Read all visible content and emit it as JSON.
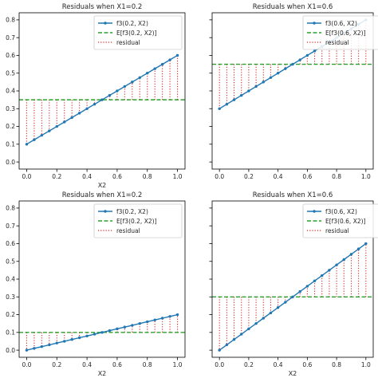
{
  "chart_data": [
    {
      "type": "line",
      "title": "Residuals when X1=0.2",
      "xlabel": "X2",
      "ylabel": "",
      "xlim": [
        -0.05,
        1.05
      ],
      "ylim": [
        -0.04,
        0.84
      ],
      "xticks": [
        "0.0",
        "0.2",
        "0.4",
        "0.6",
        "0.8",
        "1.0"
      ],
      "yticks": [
        "0.0",
        "0.1",
        "0.2",
        "0.3",
        "0.4",
        "0.5",
        "0.6",
        "0.7",
        "0.8"
      ],
      "legend_position": "top-right",
      "x": [
        0.0,
        0.05,
        0.1,
        0.15,
        0.2,
        0.25,
        0.3,
        0.35,
        0.4,
        0.45,
        0.5,
        0.55,
        0.6,
        0.65,
        0.7,
        0.75,
        0.8,
        0.85,
        0.9,
        0.95,
        1.0
      ],
      "series": [
        {
          "name": "f3(0.2, X2)",
          "style": "line-marker",
          "color": "#1f77b4",
          "values": [
            0.1,
            0.125,
            0.15,
            0.175,
            0.2,
            0.225,
            0.25,
            0.275,
            0.3,
            0.325,
            0.35,
            0.375,
            0.4,
            0.425,
            0.45,
            0.475,
            0.5,
            0.525,
            0.55,
            0.575,
            0.6
          ]
        },
        {
          "name": "E[f3(0.2, X2)]",
          "style": "dashed",
          "color": "#2ca02c",
          "value": 0.35
        },
        {
          "name": "residual",
          "style": "dotted-vlines",
          "color": "#d62728"
        }
      ]
    },
    {
      "type": "line",
      "title": "Residuals when X1=0.6",
      "xlabel": "",
      "ylabel": "",
      "xlim": [
        -0.05,
        1.05
      ],
      "ylim": [
        -0.04,
        0.84
      ],
      "xticks": [
        "0.0",
        "0.2",
        "0.4",
        "0.6",
        "0.8",
        "1.0"
      ],
      "yticks": [],
      "legend_position": "top-left",
      "x": [
        0.0,
        0.05,
        0.1,
        0.15,
        0.2,
        0.25,
        0.3,
        0.35,
        0.4,
        0.45,
        0.5,
        0.55,
        0.6,
        0.65,
        0.7,
        0.75,
        0.8,
        0.85,
        0.9,
        0.95,
        1.0
      ],
      "series": [
        {
          "name": "f3(0.6, X2)",
          "style": "line-marker",
          "color": "#1f77b4",
          "values": [
            0.3,
            0.325,
            0.35,
            0.375,
            0.4,
            0.425,
            0.45,
            0.475,
            0.5,
            0.525,
            0.55,
            0.575,
            0.6,
            0.625,
            0.65,
            0.675,
            0.7,
            0.725,
            0.75,
            0.775,
            0.8
          ]
        },
        {
          "name": "E[f3(0.6, X2)]",
          "style": "dashed",
          "color": "#2ca02c",
          "value": 0.55
        },
        {
          "name": "residual",
          "style": "dotted-vlines",
          "color": "#d62728"
        }
      ]
    },
    {
      "type": "line",
      "title": "Residuals when X1=0.2",
      "xlabel": "X2",
      "ylabel": "",
      "xlim": [
        -0.05,
        1.05
      ],
      "ylim": [
        -0.04,
        0.84
      ],
      "xticks": [
        "0.0",
        "0.2",
        "0.4",
        "0.6",
        "0.8",
        "1.0"
      ],
      "yticks": [
        "0.0",
        "0.1",
        "0.2",
        "0.3",
        "0.4",
        "0.5",
        "0.6",
        "0.7",
        "0.8"
      ],
      "legend_position": "top-right",
      "x": [
        0.0,
        0.05,
        0.1,
        0.15,
        0.2,
        0.25,
        0.3,
        0.35,
        0.4,
        0.45,
        0.5,
        0.55,
        0.6,
        0.65,
        0.7,
        0.75,
        0.8,
        0.85,
        0.9,
        0.95,
        1.0
      ],
      "series": [
        {
          "name": "f3(0.2, X2)",
          "style": "line-marker",
          "color": "#1f77b4",
          "values": [
            0.0,
            0.01,
            0.02,
            0.03,
            0.04,
            0.05,
            0.06,
            0.07,
            0.08,
            0.09,
            0.1,
            0.11,
            0.12,
            0.13,
            0.14,
            0.15,
            0.16,
            0.17,
            0.18,
            0.19,
            0.2
          ]
        },
        {
          "name": "E[f3(0.2, X2)]",
          "style": "dashed",
          "color": "#2ca02c",
          "value": 0.1
        },
        {
          "name": "residual",
          "style": "dotted-vlines",
          "color": "#d62728"
        }
      ]
    },
    {
      "type": "line",
      "title": "Residuals when X1=0.6",
      "xlabel": "X2",
      "ylabel": "",
      "xlim": [
        -0.05,
        1.05
      ],
      "ylim": [
        -0.04,
        0.84
      ],
      "xticks": [
        "0.0",
        "0.2",
        "0.4",
        "0.6",
        "0.8",
        "1.0"
      ],
      "yticks": [],
      "legend_position": "top-left",
      "x": [
        0.0,
        0.05,
        0.1,
        0.15,
        0.2,
        0.25,
        0.3,
        0.35,
        0.4,
        0.45,
        0.5,
        0.55,
        0.6,
        0.65,
        0.7,
        0.75,
        0.8,
        0.85,
        0.9,
        0.95,
        1.0
      ],
      "series": [
        {
          "name": "f3(0.6, X2)",
          "style": "line-marker",
          "color": "#1f77b4",
          "values": [
            0.0,
            0.03,
            0.06,
            0.09,
            0.12,
            0.15,
            0.18,
            0.21,
            0.24,
            0.27,
            0.3,
            0.33,
            0.36,
            0.39,
            0.42,
            0.45,
            0.48,
            0.51,
            0.54,
            0.57,
            0.6
          ]
        },
        {
          "name": "E[f3(0.6, X2)]",
          "style": "dashed",
          "color": "#2ca02c",
          "value": 0.3
        },
        {
          "name": "residual",
          "style": "dotted-vlines",
          "color": "#d62728"
        }
      ]
    }
  ]
}
